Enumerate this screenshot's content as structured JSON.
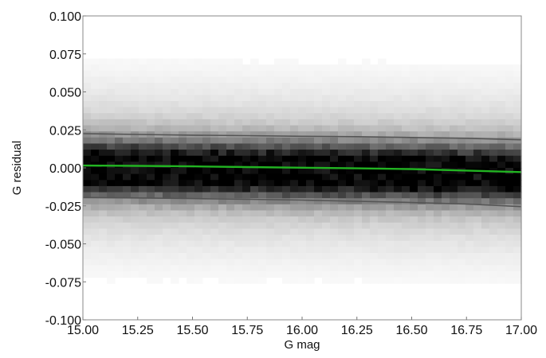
{
  "chart_data": {
    "type": "heatmap",
    "title": "",
    "xlabel": "G mag",
    "ylabel": "G residual",
    "xlim": [
      15.0,
      17.0
    ],
    "ylim": [
      -0.1,
      0.1
    ],
    "x_ticks": [
      "15.00",
      "15.25",
      "15.50",
      "15.75",
      "16.00",
      "16.25",
      "16.50",
      "16.75",
      "17.00"
    ],
    "y_ticks": [
      "-0.100",
      "-0.075",
      "-0.050",
      "-0.025",
      "0.000",
      "0.025",
      "0.050",
      "0.075",
      "0.100"
    ],
    "grid": false,
    "density": {
      "colormap": "grayscale (white = low, black = high)",
      "center": 0.0,
      "core_half_width": 0.02,
      "tail_extent": 0.06
    },
    "series": [
      {
        "color": "#22b422",
        "x": [
          15.0,
          15.25,
          15.5,
          15.75,
          16.0,
          16.25,
          16.5,
          16.75,
          17.0
        ],
        "y": [
          0.0015,
          0.0013,
          0.001,
          0.0005,
          0.0001,
          -0.0003,
          -0.0008,
          -0.0018,
          -0.0028
        ]
      },
      {
        "color": "#555555",
        "x": [
          15.0,
          15.25,
          15.5,
          15.75,
          16.0,
          16.25,
          16.5,
          16.75,
          17.0
        ],
        "y": [
          0.0225,
          0.022,
          0.0215,
          0.0212,
          0.0208,
          0.0205,
          0.02,
          0.0195,
          0.0185
        ]
      },
      {
        "color": "#555555",
        "x": [
          15.0,
          15.25,
          15.5,
          15.75,
          16.0,
          16.25,
          16.5,
          16.75,
          17.0
        ],
        "y": [
          -0.0195,
          -0.0198,
          -0.0202,
          -0.0207,
          -0.0212,
          -0.022,
          -0.0228,
          -0.0238,
          -0.0255
        ]
      }
    ]
  }
}
